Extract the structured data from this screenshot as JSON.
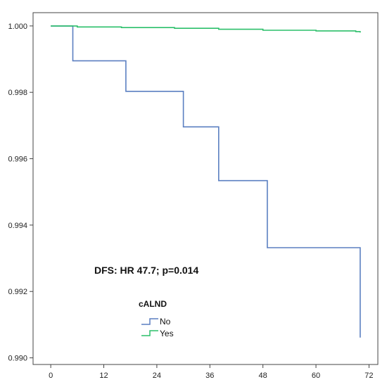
{
  "chart_data": {
    "type": "line",
    "title": "",
    "xlabel": "",
    "ylabel": "",
    "xlim": [
      -4,
      74
    ],
    "ylim": [
      0.9898,
      1.0004
    ],
    "x_ticks": [
      0,
      12,
      24,
      36,
      48,
      60,
      72
    ],
    "x_tick_labels": [
      "0",
      "12",
      "24",
      "36",
      "48",
      "60",
      "72"
    ],
    "y_ticks": [
      0.99,
      0.992,
      0.994,
      0.996,
      0.998,
      1.0
    ],
    "y_tick_labels": [
      "0.990",
      "0.992",
      "0.994",
      "0.996",
      "0.998",
      "1.000"
    ],
    "grid": false,
    "step": true,
    "series": [
      {
        "name": "No",
        "color": "#5b7fc1",
        "points": [
          [
            0,
            1.0
          ],
          [
            5,
            1.0
          ],
          [
            5,
            0.99895
          ],
          [
            17,
            0.99895
          ],
          [
            17,
            0.99803
          ],
          [
            30,
            0.99803
          ],
          [
            30,
            0.99696
          ],
          [
            38,
            0.99696
          ],
          [
            38,
            0.99534
          ],
          [
            49,
            0.99534
          ],
          [
            49,
            0.99332
          ],
          [
            70,
            0.99332
          ],
          [
            70,
            0.99061
          ]
        ]
      },
      {
        "name": "Yes",
        "color": "#2bbf6a",
        "points": [
          [
            0,
            1.0
          ],
          [
            6,
            1.0
          ],
          [
            6,
            0.99997
          ],
          [
            16,
            0.99997
          ],
          [
            16,
            0.99995
          ],
          [
            28,
            0.99995
          ],
          [
            28,
            0.99993
          ],
          [
            38,
            0.99993
          ],
          [
            38,
            0.9999
          ],
          [
            48,
            0.9999
          ],
          [
            48,
            0.99987
          ],
          [
            60,
            0.99987
          ],
          [
            60,
            0.99985
          ],
          [
            69,
            0.99985
          ],
          [
            69,
            0.99983
          ],
          [
            70,
            0.99983
          ],
          [
            70,
            0.9998
          ]
        ]
      }
    ],
    "annotation": "DFS: HR 47.7; p=0.014",
    "legend": {
      "title": "cALND",
      "position": "bottom-left",
      "items": [
        "No",
        "Yes"
      ]
    }
  }
}
